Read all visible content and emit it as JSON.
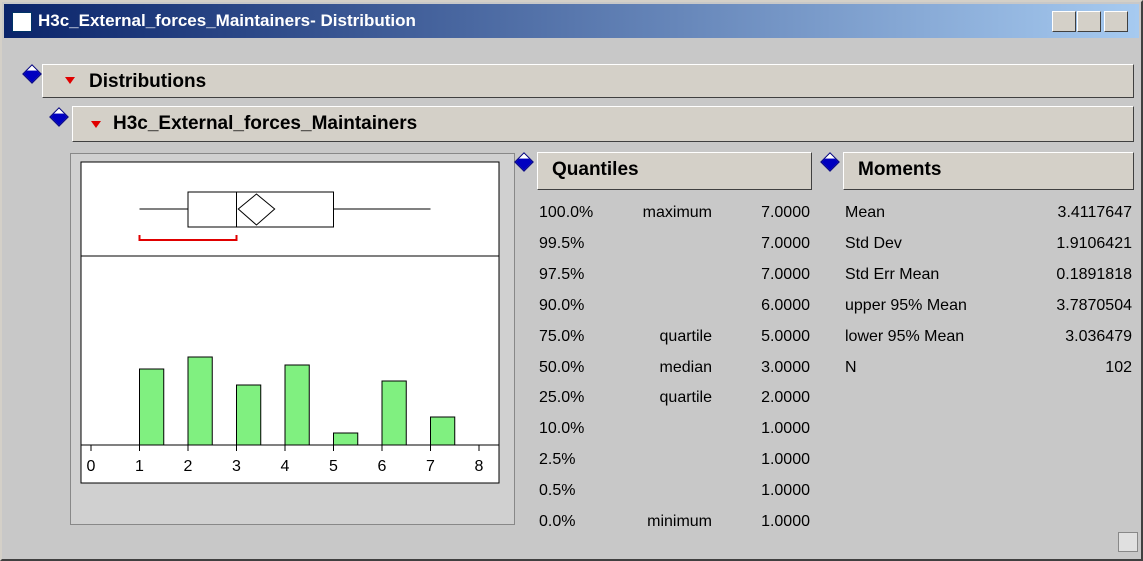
{
  "window": {
    "title": "H3c_External_forces_Maintainers- Distribution"
  },
  "outline": {
    "title": "Distributions",
    "variable": "H3c_External_forces_Maintainers"
  },
  "chart_data": {
    "type": "histogram",
    "bins": [
      1,
      1.5,
      2,
      2.5,
      3,
      3.5,
      4,
      4.5,
      5,
      5.5,
      6,
      6.5,
      7,
      7.5
    ],
    "counts": [
      19,
      0,
      22,
      0,
      15,
      0,
      20,
      0,
      3,
      0,
      16,
      0,
      7
    ],
    "color": "#80f080",
    "xlim": [
      0,
      8
    ],
    "xticks": [
      0,
      1,
      2,
      3,
      4,
      5,
      6,
      7,
      8
    ],
    "ylim": [
      0,
      47
    ],
    "box": {
      "min": 1,
      "q1": 2,
      "median": 3,
      "q3": 5,
      "max": 7,
      "mean": 3.4117647,
      "ci": [
        3.036479,
        3.7870504
      ],
      "shortest_half": [
        1,
        3
      ]
    }
  },
  "quantiles": {
    "title": "Quantiles",
    "rows": [
      {
        "percent": "100.0%",
        "label": "maximum",
        "value": "7.0000"
      },
      {
        "percent": "99.5%",
        "value": "7.0000"
      },
      {
        "percent": "97.5%",
        "value": "7.0000"
      },
      {
        "percent": "90.0%",
        "value": "6.0000"
      },
      {
        "percent": "75.0%",
        "label": "quartile",
        "value": "5.0000"
      },
      {
        "percent": "50.0%",
        "label": "median",
        "value": "3.0000"
      },
      {
        "percent": "25.0%",
        "label": "quartile",
        "value": "2.0000"
      },
      {
        "percent": "10.0%",
        "value": "1.0000"
      },
      {
        "percent": "2.5%",
        "value": "1.0000"
      },
      {
        "percent": "0.5%",
        "value": "1.0000"
      },
      {
        "percent": "0.0%",
        "label": "minimum",
        "value": "1.0000"
      }
    ]
  },
  "moments": {
    "title": "Moments",
    "rows": [
      {
        "label": "Mean",
        "value": "3.4117647"
      },
      {
        "label": "Std Dev",
        "value": "1.9106421"
      },
      {
        "label": "Std Err Mean",
        "value": "0.1891818"
      },
      {
        "label": "upper 95% Mean",
        "value": "3.7870504"
      },
      {
        "label": "lower 95% Mean",
        "value": "3.036479"
      },
      {
        "label": "N",
        "value": "102"
      }
    ]
  }
}
